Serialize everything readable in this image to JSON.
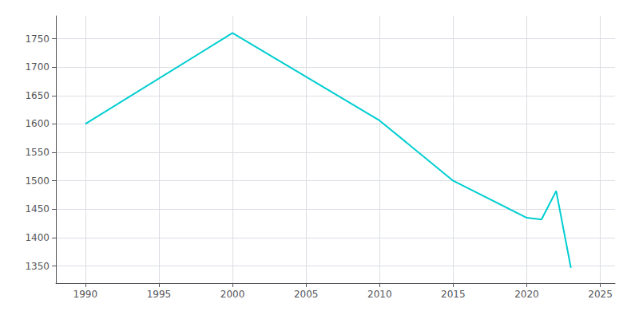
{
  "chart_data": {
    "type": "line",
    "x": [
      1990,
      2000,
      2010,
      2015,
      2020,
      2021,
      2022,
      2023
    ],
    "values": [
      1600,
      1760,
      1606,
      1500,
      1435,
      1432,
      1482,
      1347
    ],
    "color": "#00CED1",
    "xlim": [
      1988,
      2026
    ],
    "ylim": [
      1320,
      1790
    ],
    "xticks": [
      1990,
      1995,
      2000,
      2005,
      2010,
      2015,
      2020,
      2025
    ],
    "yticks": [
      1350,
      1400,
      1450,
      1500,
      1550,
      1600,
      1650,
      1700,
      1750
    ],
    "grid": true
  }
}
